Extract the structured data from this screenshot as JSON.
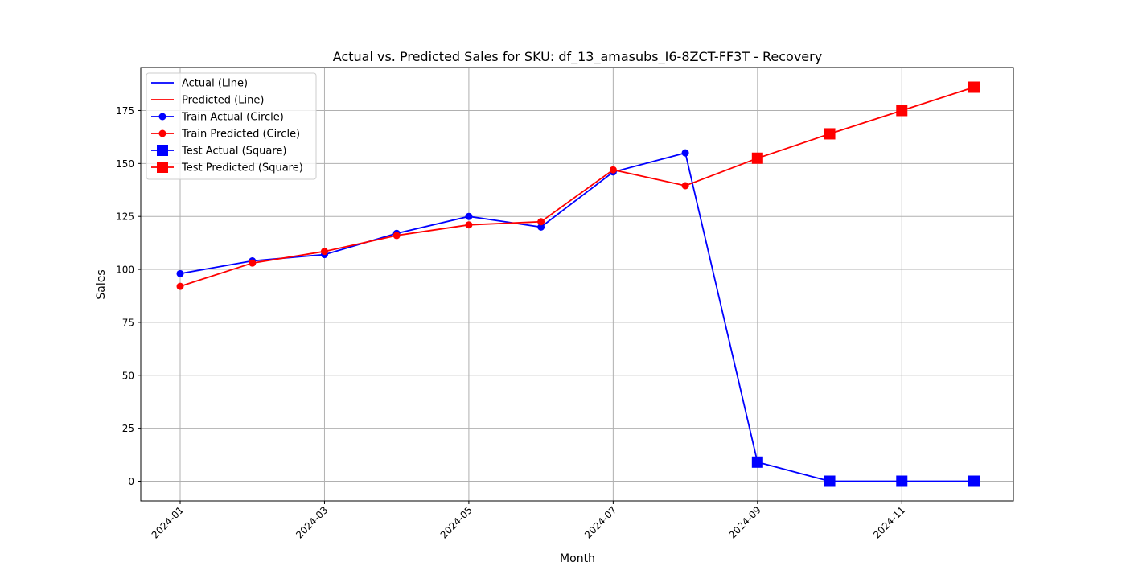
{
  "chart_data": {
    "type": "line",
    "title": "Actual vs. Predicted Sales for SKU: df_13_amasubs_I6-8ZCT-FF3T - Recovery",
    "xlabel": "Month",
    "ylabel": "Sales",
    "x": [
      "2024-01",
      "2024-02",
      "2024-03",
      "2024-04",
      "2024-05",
      "2024-06",
      "2024-07",
      "2024-08",
      "2024-09",
      "2024-10",
      "2024-11",
      "2024-12"
    ],
    "x_ticks": [
      "2024-01",
      "2024-03",
      "2024-05",
      "2024-07",
      "2024-09",
      "2024-11"
    ],
    "ylim": [
      -9.3,
      195.3
    ],
    "y_ticks": [
      0,
      25,
      50,
      75,
      100,
      125,
      150,
      175
    ],
    "grid": true,
    "legend_position": "top-left",
    "colors": {
      "actual": "#0000ff",
      "predicted": "#ff0000",
      "grid": "#b0b0b0"
    },
    "train_count": 8,
    "series": [
      {
        "name": "Actual (Line)",
        "color": "#0000ff",
        "values": [
          98,
          104,
          107,
          117,
          125,
          120,
          146,
          155,
          9,
          0,
          0,
          0
        ]
      },
      {
        "name": "Predicted (Line)",
        "color": "#ff0000",
        "values": [
          92,
          103,
          108.5,
          116,
          121,
          122.5,
          147,
          139.5,
          152.5,
          164,
          175,
          186
        ]
      }
    ],
    "legend": [
      {
        "label": "Actual (Line)",
        "color": "#0000ff",
        "marker": "none"
      },
      {
        "label": "Predicted (Line)",
        "color": "#ff0000",
        "marker": "none"
      },
      {
        "label": "Train Actual (Circle)",
        "color": "#0000ff",
        "marker": "circle"
      },
      {
        "label": "Train Predicted (Circle)",
        "color": "#ff0000",
        "marker": "circle"
      },
      {
        "label": "Test Actual (Square)",
        "color": "#0000ff",
        "marker": "square"
      },
      {
        "label": "Test Predicted (Square)",
        "color": "#ff0000",
        "marker": "square"
      }
    ]
  }
}
